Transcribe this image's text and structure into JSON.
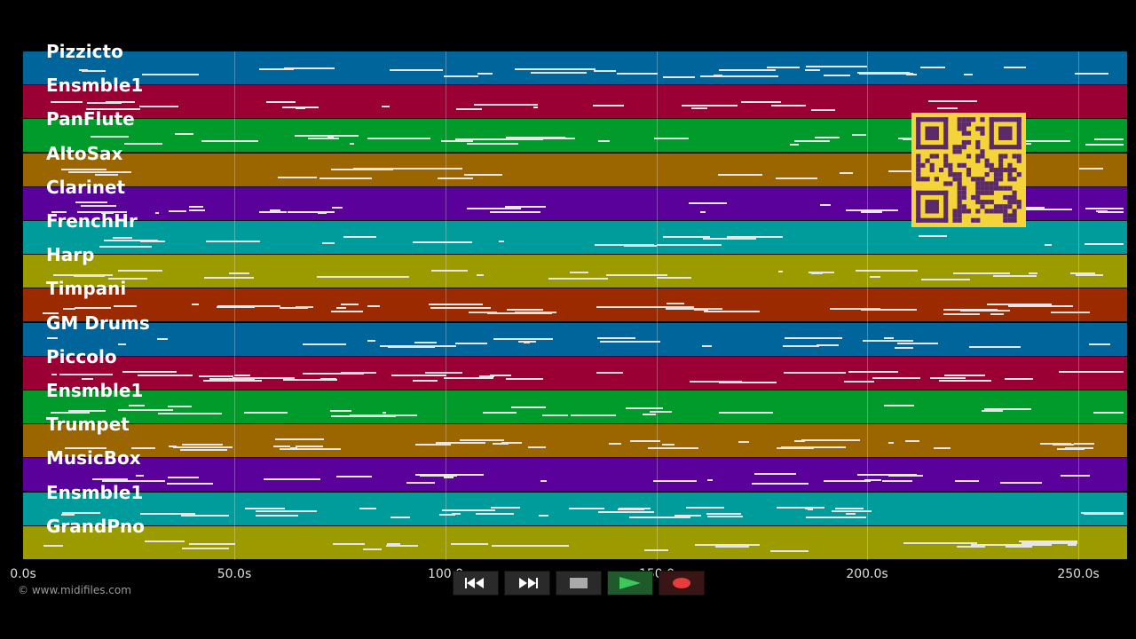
{
  "tracks": [
    {
      "name": "Pizzicto",
      "color": "#00659b"
    },
    {
      "name": "Ensmble1",
      "color": "#9b0035"
    },
    {
      "name": "PanFlute",
      "color": "#009b2a"
    },
    {
      "name": "AltoSax",
      "color": "#9b6500"
    },
    {
      "name": "Clarinet",
      "color": "#5a009b"
    },
    {
      "name": "FrenchHr",
      "color": "#009b9b"
    },
    {
      "name": "Harp",
      "color": "#9b9b00"
    },
    {
      "name": "Timpani",
      "color": "#9b2a00"
    },
    {
      "name": "GM Drums",
      "color": "#00659b"
    },
    {
      "name": "Piccolo",
      "color": "#9b0035"
    },
    {
      "name": "Ensmble1",
      "color": "#009b2a"
    },
    {
      "name": "Trumpet",
      "color": "#9b6500"
    },
    {
      "name": "MusicBox",
      "color": "#5a009b"
    },
    {
      "name": "Ensmble1",
      "color": "#009b9b"
    },
    {
      "name": "GrandPno",
      "color": "#9b9b00"
    }
  ],
  "timeline": {
    "ticks": [
      "0.0s",
      "50.0s",
      "100.0",
      "150.0",
      "200.0s",
      "250.0s"
    ]
  },
  "copyright": "© www.midifiles.com",
  "controls": [
    {
      "name": "rewind-button",
      "icon": "rewind-icon"
    },
    {
      "name": "fast-forward-button",
      "icon": "fast-forward-icon"
    },
    {
      "name": "stop-button",
      "icon": "stop-icon"
    },
    {
      "name": "play-button",
      "icon": "play-icon"
    },
    {
      "name": "record-button",
      "icon": "record-icon"
    }
  ],
  "colors": {
    "qr_bg": "#f5d43a",
    "qr_fg": "#5a2a6a",
    "play": "#3cc85a",
    "record": "#e63c3c"
  }
}
